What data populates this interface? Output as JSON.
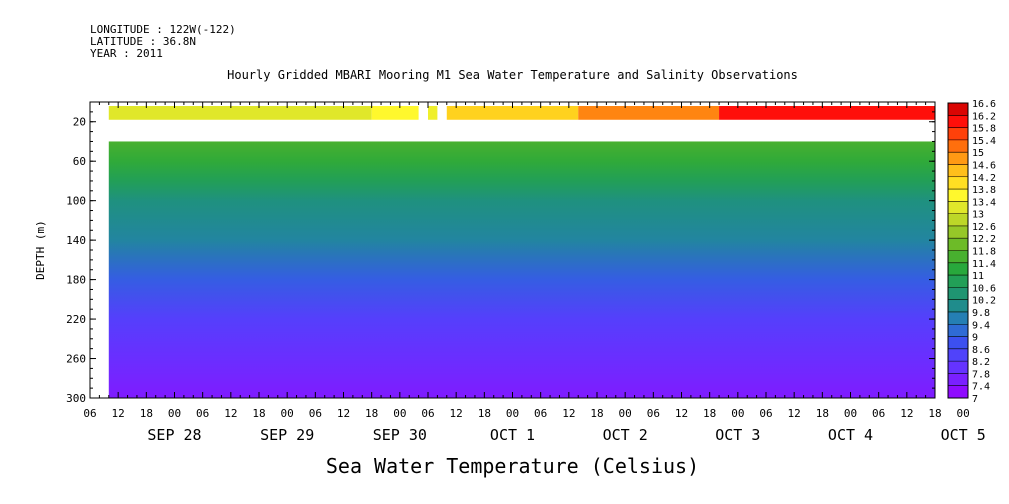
{
  "header": {
    "longitude": "LONGITUDE : 122W(-122)",
    "latitude": "LATITUDE : 36.8N",
    "year": "YEAR : 2011",
    "title": "Hourly Gridded MBARI Mooring M1 Sea Water Temperature and Salinity Observations"
  },
  "chart_data": {
    "type": "heatmap",
    "title": "Hourly Gridded MBARI Mooring M1 Sea Water Temperature and Salinity Observations",
    "xlabel": "",
    "ylabel": "DEPTH (m)",
    "colorbar_label": "Sea Water Temperature (Celsius)",
    "x_start_hour": 6,
    "x_end_hour": 186,
    "data_start_hour": 10,
    "x_hour_ticks": [
      "06",
      "12",
      "18",
      "00",
      "06",
      "12",
      "18",
      "00",
      "06",
      "12",
      "18",
      "00",
      "06",
      "12",
      "18",
      "00",
      "06",
      "12",
      "18",
      "00",
      "06",
      "12",
      "18",
      "00",
      "06",
      "12",
      "18",
      "00",
      "06",
      "12",
      "18",
      "00"
    ],
    "x_day_labels": [
      "SEP 28",
      "SEP 29",
      "SEP 30",
      "OCT  1",
      "OCT  2",
      "OCT  3",
      "OCT  4",
      "OCT  5"
    ],
    "ylim": [
      300,
      0
    ],
    "y_ticks": [
      20,
      60,
      100,
      140,
      180,
      220,
      260,
      300
    ],
    "colorbar_ticks": [
      "16.6",
      "16.2",
      "15.8",
      "15.4",
      "15",
      "14.6",
      "14.2",
      "13.8",
      "13.4",
      "13",
      "12.6",
      "12.2",
      "11.8",
      "11.4",
      "11",
      "10.6",
      "10.2",
      "9.8",
      "9.4",
      "9",
      "8.6",
      "8.2",
      "7.8",
      "7.4",
      "7"
    ],
    "colorbar_range": [
      7,
      16.6
    ],
    "surface_depths_m": [
      0,
      18
    ],
    "gap_depths_m": [
      18,
      40
    ],
    "profile_depth_m": [
      40,
      60,
      80,
      100,
      140,
      180,
      220,
      260,
      280,
      300
    ],
    "profile_temp_c": [
      11.6,
      11.3,
      10.8,
      10.2,
      9.8,
      9.0,
      8.3,
      7.9,
      7.7,
      7.5
    ],
    "surface_segments": [
      {
        "from_hour": 10,
        "to_hour": 66,
        "temp_c": 13.2
      },
      {
        "from_hour": 66,
        "to_hour": 76,
        "temp_c": 13.6
      },
      {
        "from_hour": 78,
        "to_hour": 80,
        "temp_c": 13.4
      },
      {
        "from_hour": 82,
        "to_hour": 110,
        "temp_c": 14.2
      },
      {
        "from_hour": 110,
        "to_hour": 140,
        "temp_c": 15.0
      },
      {
        "from_hour": 140,
        "to_hour": 186,
        "temp_c": 16.0
      }
    ],
    "surface_missing_hours": [
      [
        76,
        78
      ],
      [
        80,
        82
      ]
    ]
  },
  "colors": {
    "palette": [
      "#9a00ff",
      "#7a20ff",
      "#5a3cff",
      "#3c50f0",
      "#2878c8",
      "#1f8c8c",
      "#1f9a64",
      "#28a83c",
      "#58b428",
      "#96c828",
      "#d0de28",
      "#fff82d",
      "#ffd21e",
      "#ff9a14",
      "#ff5a0a",
      "#ff0f0a",
      "#c80000"
    ]
  }
}
